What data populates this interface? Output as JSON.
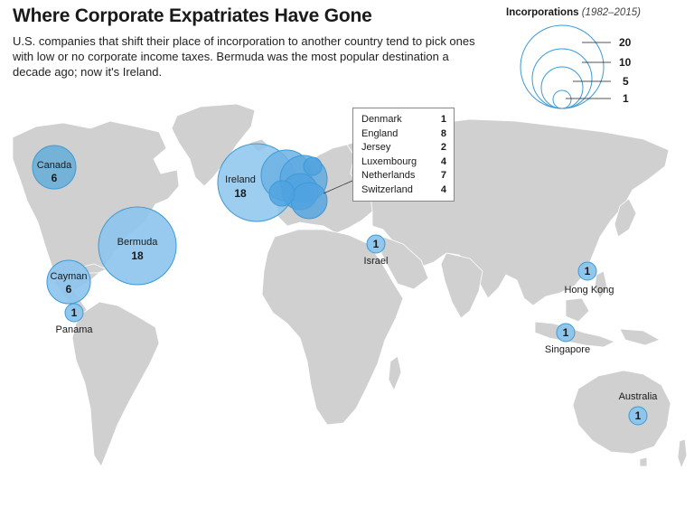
{
  "header": {
    "title": "Where Corporate Expatriates Have Gone",
    "subtitle": "U.S. companies that shift their place of incorporation to another country tend to pick ones with low or no corporate income taxes. Bermuda was the most popular destination a decade ago; now it's Ireland."
  },
  "legend": {
    "title": "Incorporations",
    "period": "(1982–2015)",
    "sizes": [
      {
        "value": 20,
        "label": "20"
      },
      {
        "value": 10,
        "label": "10"
      },
      {
        "value": 5,
        "label": "5"
      },
      {
        "value": 1,
        "label": "1"
      }
    ]
  },
  "colors": {
    "land": "#d0d0d0",
    "ocean": "#ffffff",
    "bubble_fill": "#8cc4ec",
    "bubble_stroke": "#3d9ad6",
    "dark_bubble_fill": "#6aaed8",
    "overlap_fill": "#4fa3e0"
  },
  "locations": [
    {
      "name": "Canada",
      "count": 6,
      "count_label": "6"
    },
    {
      "name": "Bermuda",
      "count": 18,
      "count_label": "18"
    },
    {
      "name": "Cayman",
      "count": 6,
      "count_label": "6"
    },
    {
      "name": "Panama",
      "count": 1,
      "count_label": "1"
    },
    {
      "name": "Ireland",
      "count": 18,
      "count_label": "18"
    },
    {
      "name": "Israel",
      "count": 1,
      "count_label": "1"
    },
    {
      "name": "Hong Kong",
      "count": 1,
      "count_label": "1"
    },
    {
      "name": "Singapore",
      "count": 1,
      "count_label": "1"
    },
    {
      "name": "Australia",
      "count": 1,
      "count_label": "1"
    }
  ],
  "europe_callout": [
    {
      "name": "Denmark",
      "count": 1,
      "count_label": "1"
    },
    {
      "name": "England",
      "count": 8,
      "count_label": "8"
    },
    {
      "name": "Jersey",
      "count": 2,
      "count_label": "2"
    },
    {
      "name": "Luxembourg",
      "count": 4,
      "count_label": "4"
    },
    {
      "name": "Netherlands",
      "count": 7,
      "count_label": "7"
    },
    {
      "name": "Switzerland",
      "count": 4,
      "count_label": "4"
    }
  ]
}
